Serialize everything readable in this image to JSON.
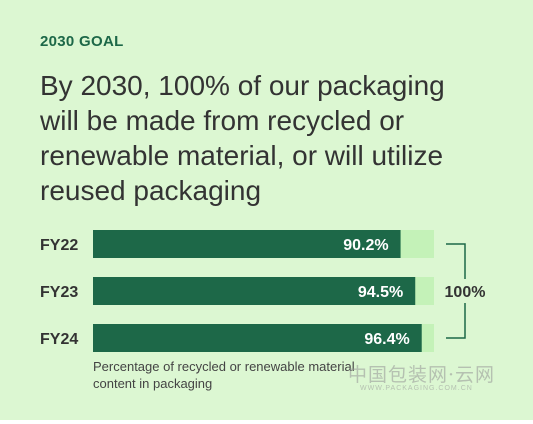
{
  "header": {
    "goal_label": "2030 GOAL",
    "headline_lines": [
      "By 2030, 100% of our packaging",
      "will be made from recycled or",
      "renewable material, or will utilize",
      "reused packaging"
    ]
  },
  "colors": {
    "background": "#dcf7d2",
    "bar": "#1d6848",
    "track": "#c4f2b8",
    "label": "#333333",
    "bracket": "#1d6848"
  },
  "chart_data": {
    "type": "bar",
    "orientation": "horizontal",
    "categories": [
      "FY22",
      "FY23",
      "FY24"
    ],
    "values": [
      90.2,
      94.5,
      96.4
    ],
    "value_labels": [
      "90.2%",
      "94.5%",
      "96.4%"
    ],
    "xlim": [
      0,
      100
    ],
    "target": 100,
    "target_label": "100%",
    "caption_lines": [
      "Percentage of recycled or renewable material",
      "content in packaging"
    ]
  },
  "watermark": {
    "text": "中国包装网·云网",
    "sub": "WWW.PACKAGING.COM.CN"
  }
}
